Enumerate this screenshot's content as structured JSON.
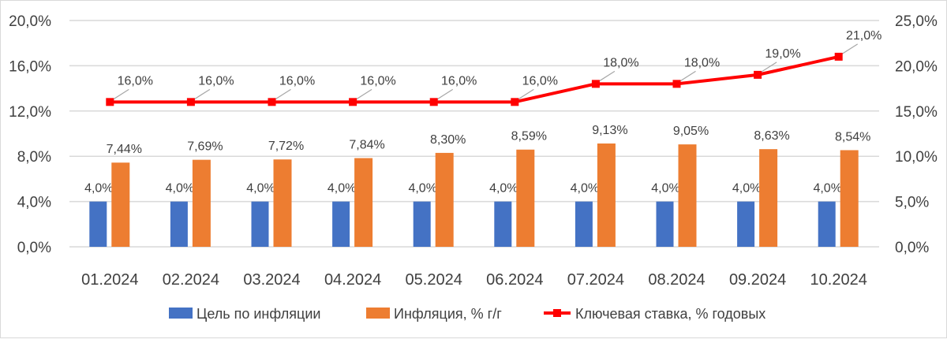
{
  "chart_data": {
    "type": "bar+line",
    "categories": [
      "01.2024",
      "02.2024",
      "03.2024",
      "04.2024",
      "05.2024",
      "06.2024",
      "07.2024",
      "08.2024",
      "09.2024",
      "10.2024"
    ],
    "series": [
      {
        "name": "Цель по инфляции",
        "type": "bar",
        "axis": "left",
        "color": "#4472c4",
        "values": [
          4.0,
          4.0,
          4.0,
          4.0,
          4.0,
          4.0,
          4.0,
          4.0,
          4.0,
          4.0
        ],
        "labels": [
          "4,0%",
          "4,0%",
          "4,0%",
          "4,0%",
          "4,0%",
          "4,0%",
          "4,0%",
          "4,0%",
          "4,0%",
          "4,0%"
        ]
      },
      {
        "name": "Инфляция, % г/г",
        "type": "bar",
        "axis": "left",
        "color": "#ed7d31",
        "values": [
          7.44,
          7.69,
          7.72,
          7.84,
          8.3,
          8.59,
          9.13,
          9.05,
          8.63,
          8.54
        ],
        "labels": [
          "7,44%",
          "7,69%",
          "7,72%",
          "7,84%",
          "8,30%",
          "8,59%",
          "9,13%",
          "9,05%",
          "8,63%",
          "8,54%"
        ]
      },
      {
        "name": "Ключевая ставка, % годовых",
        "type": "line",
        "axis": "right",
        "color": "#ff0000",
        "values": [
          16,
          16,
          16,
          16,
          16,
          16,
          18,
          18,
          19,
          21
        ],
        "labels": [
          "16,0%",
          "16,0%",
          "16,0%",
          "16,0%",
          "16,0%",
          "16,0%",
          "18,0%",
          "18,0%",
          "19,0%",
          "21,0%"
        ]
      }
    ],
    "y_left": {
      "range": [
        0,
        20
      ],
      "ticks": [
        "0,0%",
        "4,0%",
        "8,0%",
        "12,0%",
        "16,0%",
        "20,0%"
      ]
    },
    "y_right": {
      "range": [
        0,
        25
      ],
      "ticks": [
        "0,0%",
        "5,0%",
        "10,0%",
        "15,0%",
        "20,0%",
        "25,0%"
      ]
    },
    "grid": true,
    "legend": "bottom"
  }
}
